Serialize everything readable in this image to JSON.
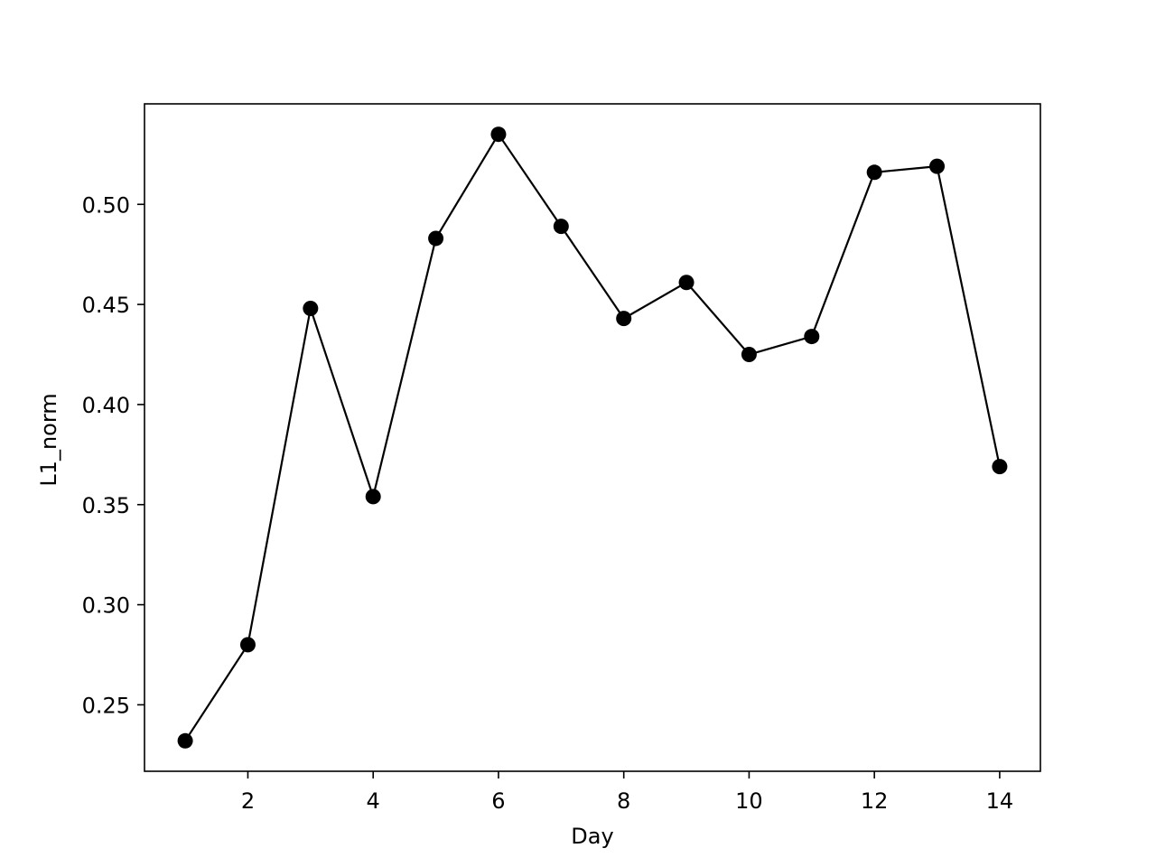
{
  "chart_data": {
    "type": "line",
    "title": "",
    "xlabel": "Day",
    "ylabel": "L1_norm",
    "x": [
      1,
      2,
      3,
      4,
      5,
      6,
      7,
      8,
      9,
      10,
      11,
      12,
      13,
      14
    ],
    "series": [
      {
        "values": [
          0.232,
          0.28,
          0.448,
          0.354,
          0.483,
          0.535,
          0.489,
          0.443,
          0.461,
          0.425,
          0.434,
          0.516,
          0.519,
          0.369
        ],
        "color": "#000000",
        "marker": "circle"
      }
    ],
    "xlim": [
      0.35,
      14.65
    ],
    "ylim": [
      0.2168,
      0.5502
    ],
    "xticks": [
      2,
      4,
      6,
      8,
      10,
      12,
      14
    ],
    "xtick_labels": [
      "2",
      "4",
      "6",
      "8",
      "10",
      "12",
      "14"
    ],
    "yticks": [
      0.25,
      0.3,
      0.35,
      0.4,
      0.45,
      0.5
    ],
    "ytick_labels": [
      "0.25",
      "0.30",
      "0.35",
      "0.40",
      "0.45",
      "0.50"
    ],
    "grid": false,
    "legend": "none"
  }
}
